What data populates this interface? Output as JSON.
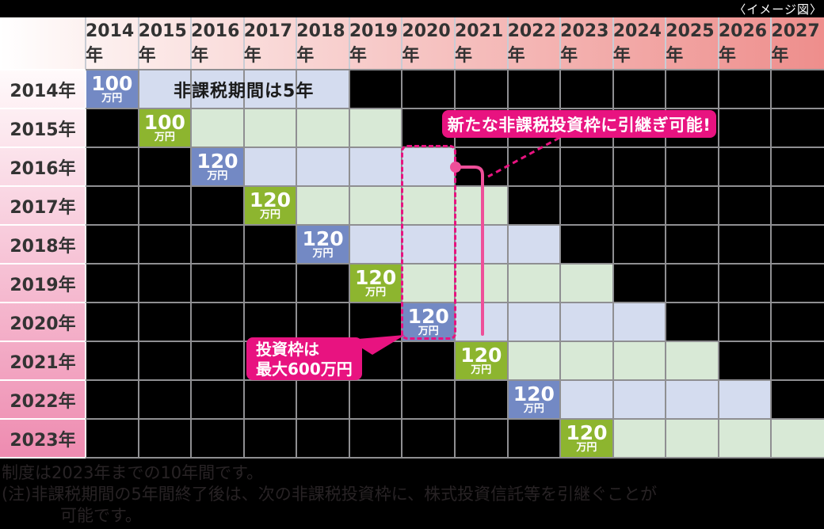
{
  "caption": "〈イメージ図〉",
  "colors": {
    "background": "#000000",
    "accent-pink": "#e81380",
    "connector-pink": "#ee4f99",
    "cell-blue": "#7389c4",
    "cell-blue-light": "#d4dcef",
    "cell-green": "#8db52f",
    "cell-green-light": "#d8e9d6",
    "header-grad-left": "#fdf1f0",
    "header-grad-right": "#ee8e8c",
    "rowhead-top": "#fffafb",
    "rowhead-bottom": "#ee8bb0",
    "grid-line": "#8f8f92",
    "header-sep": "#c9ccd4",
    "label-text": "#333333",
    "note-text": "#282325",
    "caption-text": "#ffffff"
  },
  "table": {
    "column_years": [
      "2014年",
      "2015年",
      "2016年",
      "2017年",
      "2018年",
      "2019年",
      "2020年",
      "2021年",
      "2022年",
      "2023年",
      "2024年",
      "2025年",
      "2026年",
      "2027年"
    ],
    "tax_free_span_years": 5,
    "rows": [
      {
        "label": "2014年",
        "amount": "100",
        "unit": "万円",
        "scheme": "blue"
      },
      {
        "label": "2015年",
        "amount": "100",
        "unit": "万円",
        "scheme": "green"
      },
      {
        "label": "2016年",
        "amount": "120",
        "unit": "万円",
        "scheme": "blue"
      },
      {
        "label": "2017年",
        "amount": "120",
        "unit": "万円",
        "scheme": "green"
      },
      {
        "label": "2018年",
        "amount": "120",
        "unit": "万円",
        "scheme": "blue"
      },
      {
        "label": "2019年",
        "amount": "120",
        "unit": "万円",
        "scheme": "green"
      },
      {
        "label": "2020年",
        "amount": "120",
        "unit": "万円",
        "scheme": "blue"
      },
      {
        "label": "2021年",
        "amount": "120",
        "unit": "万円",
        "scheme": "green"
      },
      {
        "label": "2022年",
        "amount": "120",
        "unit": "万円",
        "scheme": "blue"
      },
      {
        "label": "2023年",
        "amount": "120",
        "unit": "万円",
        "scheme": "green"
      }
    ]
  },
  "callouts": {
    "taxfree": "非課税期間は5年",
    "rollover": "新たな非課税投資枠に引継ぎ可能!",
    "max_investment_line1": "投資枠は",
    "max_investment_line2": "最大600万円"
  },
  "notes": {
    "line1": "制度は2023年までの10年間です。",
    "line2": "(注)非課税期間の5年間終了後は、次の非課税投資枠に、株式投資信託等を引継ぐことが",
    "line3": "可能です。"
  }
}
